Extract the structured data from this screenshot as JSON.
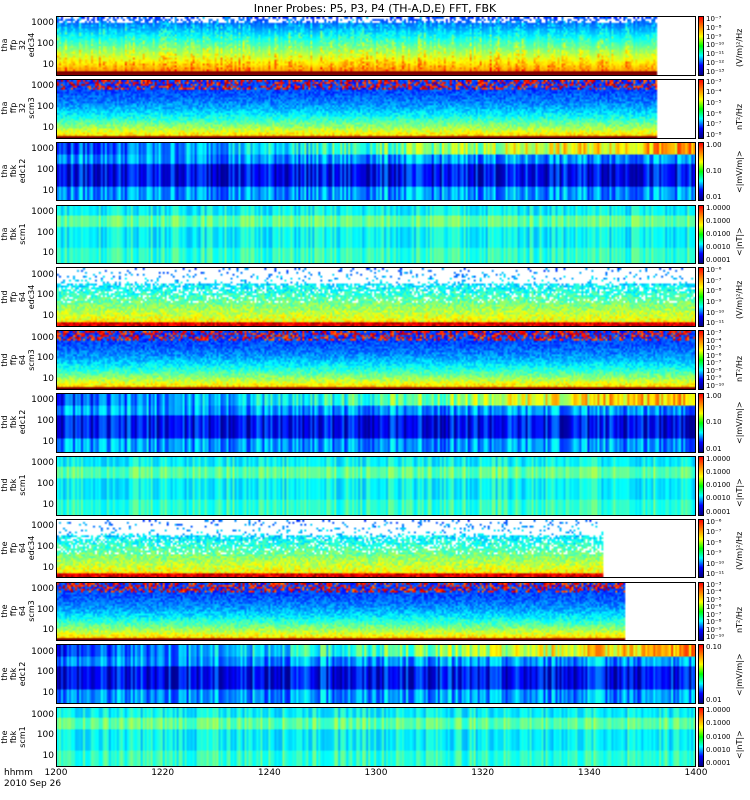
{
  "page": {
    "title": "Inner Probes: P5, P3, P4  (TH-A,D,E) FFT, FBK",
    "x_axis_label": "hhmm",
    "date_label": "2010 Sep 26",
    "x_ticks": [
      "1200",
      "1220",
      "1240",
      "1300",
      "1320",
      "1340",
      "1400"
    ]
  },
  "chart_data": [
    {
      "type": "heatmap",
      "label": "tha ffp 32 edc34",
      "yticks": [
        "1000",
        "100",
        "10"
      ],
      "cbar_ticks": [
        "10⁻⁷",
        "10⁻⁸",
        "10⁻⁹",
        "10⁻¹⁰",
        "10⁻¹¹",
        "10⁻¹²",
        "10⁻¹³"
      ],
      "cbar_unit": "(V/m)²/Hz",
      "style": "efield-dense",
      "end": 0.94
    },
    {
      "type": "heatmap",
      "label": "tha ffp 32 scm3",
      "yticks": [
        "1000",
        "100",
        "10"
      ],
      "cbar_ticks": [
        "10⁻³",
        "10⁻⁴",
        "10⁻⁵",
        "10⁻⁶",
        "10⁻⁷",
        "10⁻⁸"
      ],
      "cbar_unit": "nT²/Hz",
      "style": "scm",
      "end": 0.94
    },
    {
      "type": "heatmap",
      "label": "tha fbk edc12",
      "yticks": [
        "1000",
        "100",
        "10"
      ],
      "cbar_ticks": [
        "1.00",
        "0.10",
        "0.01"
      ],
      "cbar_unit": "<|mV/m|>",
      "style": "fbk-e",
      "end": 1.0
    },
    {
      "type": "heatmap",
      "label": "tha fbk scm1",
      "yticks": [
        "1000",
        "100",
        "10"
      ],
      "cbar_ticks": [
        "1.0000",
        "0.1000",
        "0.0100",
        "0.0010",
        "0.0001"
      ],
      "cbar_unit": "<|nT|>",
      "style": "fbk-b",
      "end": 1.0
    },
    {
      "type": "heatmap",
      "label": "thd ffp 64 edc34",
      "yticks": [
        "1000",
        "100",
        "10"
      ],
      "cbar_ticks": [
        "10⁻⁶",
        "10⁻⁷",
        "10⁻⁸",
        "10⁻⁹",
        "10⁻¹⁰",
        "10⁻¹¹"
      ],
      "cbar_unit": "(V/m)²/Hz",
      "style": "efield-sparse",
      "end": 1.0
    },
    {
      "type": "heatmap",
      "label": "thd ffp 64 scm3",
      "yticks": [
        "1000",
        "100",
        "10"
      ],
      "cbar_ticks": [
        "10⁻³",
        "10⁻⁴",
        "10⁻⁵",
        "10⁻⁶",
        "10⁻⁷",
        "10⁻⁸",
        "10⁻⁹",
        "10⁻¹⁰"
      ],
      "cbar_unit": "nT²/Hz",
      "style": "scm",
      "end": 1.0
    },
    {
      "type": "heatmap",
      "label": "thd fbk edc12",
      "yticks": [
        "1000",
        "100",
        "10"
      ],
      "cbar_ticks": [
        "1.00",
        "0.10",
        "0.01"
      ],
      "cbar_unit": "<|mV/m|>",
      "style": "fbk-e",
      "end": 1.0
    },
    {
      "type": "heatmap",
      "label": "thd fbk scm1",
      "yticks": [
        "1000",
        "100",
        "10"
      ],
      "cbar_ticks": [
        "1.0000",
        "0.1000",
        "0.0100",
        "0.0010",
        "0.0001"
      ],
      "cbar_unit": "<|nT|>",
      "style": "fbk-b",
      "end": 1.0
    },
    {
      "type": "heatmap",
      "label": "the ffp 64 edc34",
      "yticks": [
        "1000",
        "100",
        "10"
      ],
      "cbar_ticks": [
        "10⁻⁶",
        "10⁻⁷",
        "10⁻⁸",
        "10⁻⁹",
        "10⁻¹⁰",
        "10⁻¹¹"
      ],
      "cbar_unit": "(V/m)²/Hz",
      "style": "efield-sparse",
      "end": 0.855
    },
    {
      "type": "heatmap",
      "label": "the ffp 64 scm3",
      "yticks": [
        "1000",
        "100",
        "10"
      ],
      "cbar_ticks": [
        "10⁻³",
        "10⁻⁴",
        "10⁻⁵",
        "10⁻⁶",
        "10⁻⁷",
        "10⁻⁸",
        "10⁻⁹",
        "10⁻¹⁰"
      ],
      "cbar_unit": "nT²/Hz",
      "style": "scm",
      "end": 0.89
    },
    {
      "type": "heatmap",
      "label": "the fbk edc12",
      "yticks": [
        "1000",
        "100",
        "10"
      ],
      "cbar_ticks": [
        "0.10",
        "0.01"
      ],
      "cbar_unit": "<|mV/m|>",
      "style": "fbk-e",
      "end": 1.0
    },
    {
      "type": "heatmap",
      "label": "the fbk scm1",
      "yticks": [
        "1000",
        "100",
        "10"
      ],
      "cbar_ticks": [
        "1.0000",
        "0.1000",
        "0.0100",
        "0.0010",
        "0.0001"
      ],
      "cbar_unit": "<|nT|>",
      "style": "fbk-b",
      "end": 1.0
    }
  ]
}
